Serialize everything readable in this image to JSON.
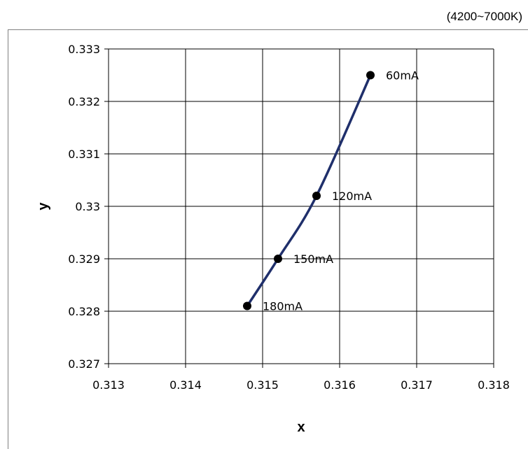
{
  "header": {
    "range_note": "(4200~7000K)"
  },
  "chart_data": {
    "type": "line",
    "title": "",
    "xlabel": "x",
    "ylabel": "y",
    "xlim": [
      0.313,
      0.318
    ],
    "ylim": [
      0.327,
      0.333
    ],
    "x_ticks": [
      0.313,
      0.314,
      0.315,
      0.316,
      0.317,
      0.318
    ],
    "y_ticks": [
      0.327,
      0.328,
      0.329,
      0.33,
      0.331,
      0.332,
      0.333
    ],
    "x_tick_labels": [
      "0.313",
      "0.314",
      "0.315",
      "0.316",
      "0.317",
      "0.318"
    ],
    "y_tick_labels": [
      "0.327",
      "0.328",
      "0.329",
      "0.33",
      "0.331",
      "0.332",
      "0.333"
    ],
    "grid": true,
    "series": [
      {
        "color": "#1f2f6b",
        "marker_color": "#000000",
        "points": [
          {
            "x": 0.3148,
            "y": 0.3281,
            "label": "180mA"
          },
          {
            "x": 0.3152,
            "y": 0.329,
            "label": "150mA"
          },
          {
            "x": 0.3157,
            "y": 0.3302,
            "label": "120mA"
          },
          {
            "x": 0.3164,
            "y": 0.3325,
            "label": "60mA"
          }
        ]
      }
    ]
  }
}
